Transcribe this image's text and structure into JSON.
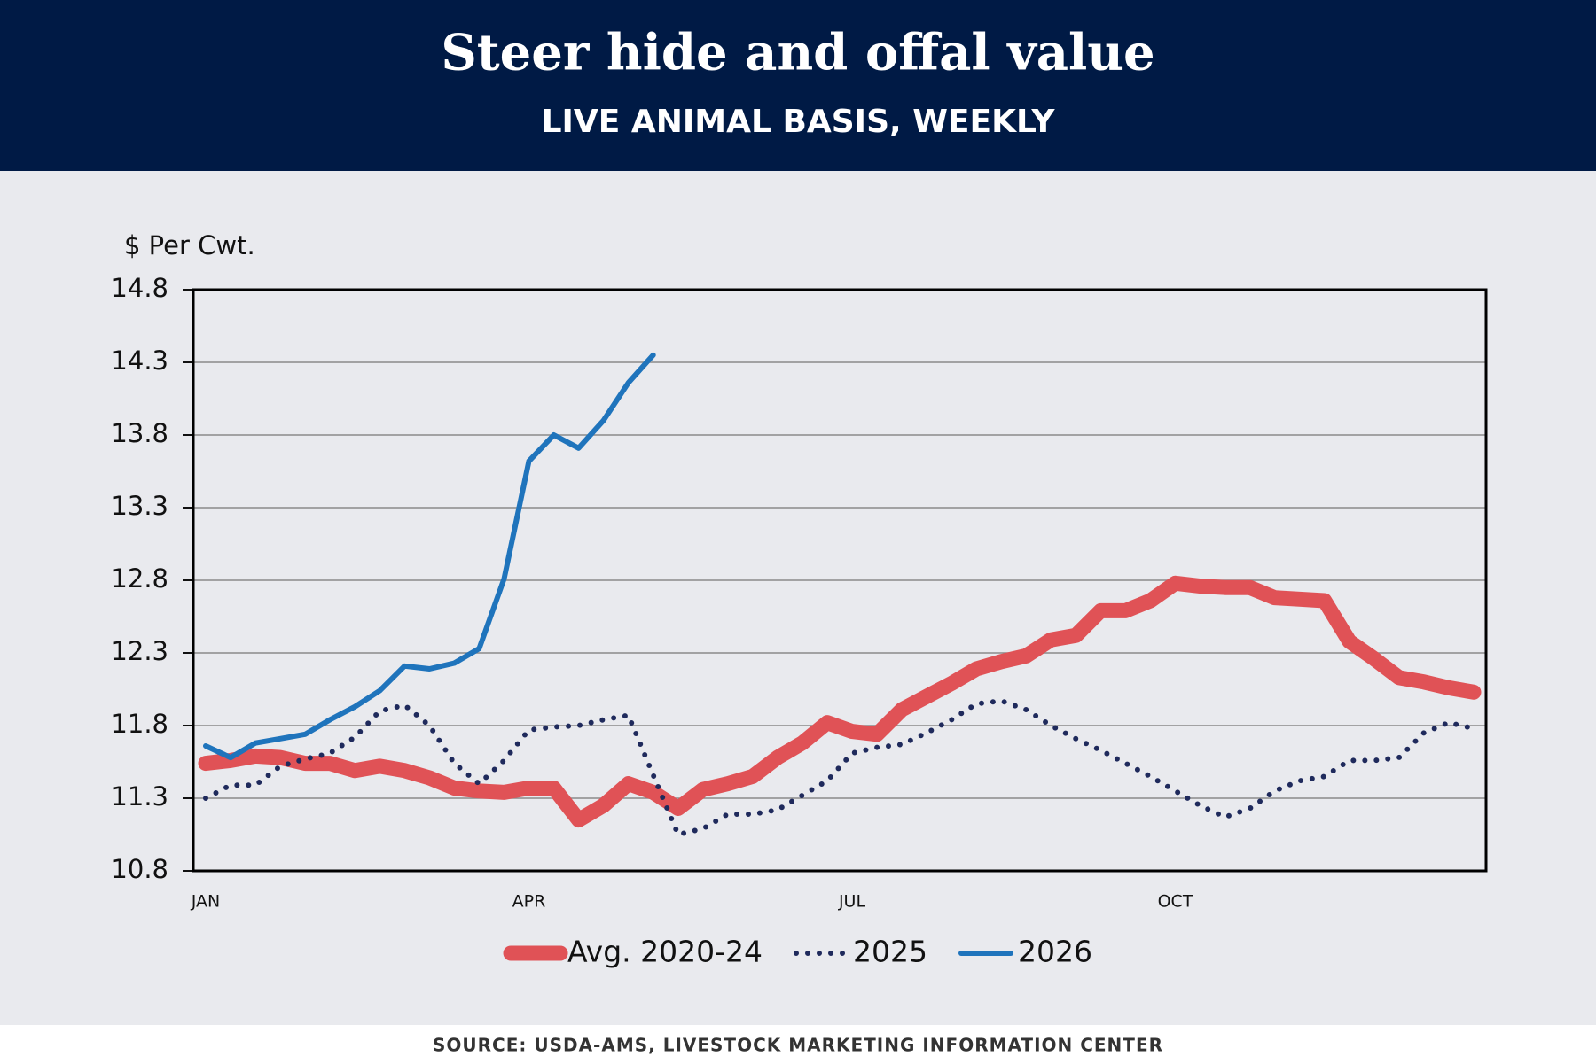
{
  "chart_data": {
    "type": "line",
    "title": "Steer hide and offal value",
    "subtitle": "LIVE ANIMAL BASIS, WEEKLY",
    "y_label": "$ Per Cwt.",
    "source": "SOURCE: USDA-AMS, LIVESTOCK MARKETING INFORMATION CENTER",
    "categories": [
      "JAN",
      null,
      null,
      null,
      null,
      null,
      null,
      null,
      null,
      null,
      null,
      null,
      null,
      "APR",
      null,
      null,
      null,
      null,
      null,
      null,
      null,
      null,
      null,
      null,
      null,
      null,
      "JUL",
      null,
      null,
      null,
      null,
      null,
      null,
      null,
      null,
      null,
      null,
      null,
      null,
      "OCT",
      null,
      null,
      null,
      null,
      null,
      null,
      null,
      null,
      null,
      null,
      null,
      null
    ],
    "series": [
      {
        "name": "Avg. 2020-24",
        "color": "#e05256",
        "style": "solid",
        "values": [
          11.54,
          11.56,
          11.59,
          11.58,
          11.54,
          11.54,
          11.49,
          11.52,
          11.49,
          11.44,
          11.37,
          11.35,
          11.34,
          11.37,
          11.37,
          11.15,
          11.25,
          11.4,
          11.34,
          11.23,
          11.36,
          11.4,
          11.45,
          11.58,
          11.68,
          11.82,
          11.76,
          11.74,
          11.91,
          12.0,
          12.09,
          12.19,
          12.24,
          12.28,
          12.39,
          12.42,
          12.59,
          12.59,
          12.66,
          12.78,
          12.76,
          12.75,
          12.75,
          12.68,
          12.67,
          12.66,
          12.38,
          12.26,
          12.13,
          12.1,
          12.06,
          12.03
        ]
      },
      {
        "name": "2025",
        "color": "#1f2a5c",
        "style": "dotted",
        "values": [
          11.3,
          11.39,
          11.39,
          11.52,
          11.57,
          11.61,
          11.72,
          11.9,
          11.94,
          11.8,
          11.54,
          11.4,
          11.56,
          11.77,
          11.79,
          11.8,
          11.84,
          11.87,
          11.46,
          11.05,
          11.09,
          11.19,
          11.19,
          11.22,
          11.32,
          11.42,
          11.61,
          11.65,
          11.67,
          11.75,
          11.84,
          11.95,
          11.97,
          11.91,
          11.8,
          11.71,
          11.63,
          11.54,
          11.45,
          11.35,
          11.25,
          11.17,
          11.23,
          11.35,
          11.42,
          11.45,
          11.56,
          11.56,
          11.58,
          11.75,
          11.82,
          11.78
        ]
      },
      {
        "name": "2026",
        "color": "#1f74bc",
        "style": "solid",
        "values": [
          11.66,
          11.58,
          11.68,
          11.71,
          11.74,
          11.84,
          11.93,
          12.04,
          12.21,
          12.19,
          12.23,
          12.33,
          12.81,
          13.62,
          13.8,
          13.71,
          13.9,
          14.16,
          14.35,
          null,
          null,
          null,
          null,
          null,
          null,
          null,
          null,
          null,
          null,
          null,
          null,
          null,
          null,
          null,
          null,
          null,
          null,
          null,
          null,
          null,
          null,
          null,
          null,
          null,
          null,
          null,
          null,
          null,
          null,
          null,
          null,
          null
        ]
      }
    ],
    "ylim": [
      10.8,
      14.8
    ],
    "yticks": [
      10.8,
      11.3,
      11.8,
      12.3,
      12.8,
      13.3,
      13.8,
      14.3,
      14.8
    ],
    "grid": true
  }
}
